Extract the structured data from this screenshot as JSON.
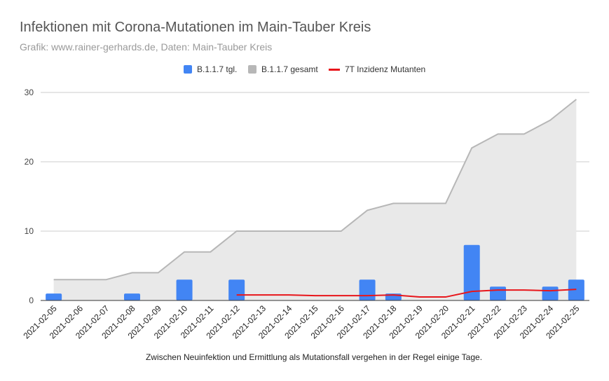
{
  "chart_data": {
    "type": "bar",
    "title": "Infektionen mit Corona-Mutationen im Main-Tauber Kreis",
    "subtitle": "Grafik: www.rainer-gerhards.de, Daten: Main-Tauber Kreis",
    "xlabel": "Zwischen Neuinfektion und Ermittlung als Mutationsfall vergehen in der Regel einige Tage.",
    "ylabel": "",
    "ylim": [
      0,
      30
    ],
    "yticks": [
      "0",
      "10",
      "20",
      "30"
    ],
    "grid": true,
    "legend_position": "top",
    "categories": [
      "2021-02-05",
      "2021-02-06",
      "2021-02-07",
      "2021-02-08",
      "2021-02-09",
      "2021-02-10",
      "2021-02-11",
      "2021-02-12",
      "2021-02-13",
      "2021-02-14",
      "2021-02-15",
      "2021-02-16",
      "2021-02-17",
      "2021-02-18",
      "2021-02-19",
      "2021-02-20",
      "2021-02-21",
      "2021-02-22",
      "2021-02-23",
      "2021-02-24",
      "2021-02-25"
    ],
    "series": [
      {
        "name": "B.1.1.7 tgl.",
        "type": "bar",
        "color": "#4285f4",
        "values": [
          1,
          0,
          0,
          1,
          0,
          3,
          0,
          3,
          0,
          0,
          0,
          0,
          3,
          1,
          0,
          0,
          8,
          2,
          0,
          2,
          3
        ]
      },
      {
        "name": "B.1.1.7 gesamt",
        "type": "area",
        "color": "#b7b7b7",
        "values": [
          3,
          3,
          3,
          4,
          4,
          7,
          7,
          10,
          10,
          10,
          10,
          10,
          13,
          14,
          14,
          14,
          22,
          24,
          24,
          26,
          29
        ]
      },
      {
        "name": "7T Inzidenz Mutanten",
        "type": "line",
        "color": "#e8161b",
        "values": [
          null,
          null,
          null,
          null,
          null,
          null,
          null,
          0.8,
          0.8,
          0.8,
          0.7,
          0.7,
          0.7,
          0.8,
          0.5,
          0.5,
          1.3,
          1.5,
          1.5,
          1.4,
          1.6
        ]
      }
    ]
  }
}
